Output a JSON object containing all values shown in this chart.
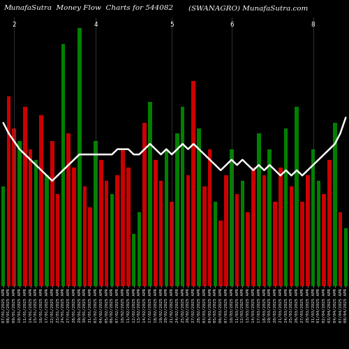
{
  "title_left": "MunafaSutra  Money Flow  Charts for 544082",
  "title_right": "(SWANAGRO) MunafaSutra.com",
  "background_color": "#000000",
  "bar_colors": [
    "green",
    "red",
    "red",
    "green",
    "red",
    "red",
    "green",
    "red",
    "green",
    "red",
    "red",
    "green",
    "red",
    "red",
    "green",
    "red",
    "red",
    "green",
    "red",
    "red",
    "green",
    "red",
    "red",
    "red",
    "green",
    "green",
    "red",
    "green",
    "red",
    "red",
    "green",
    "red",
    "green",
    "green",
    "red",
    "red",
    "green",
    "red",
    "red",
    "green",
    "red",
    "red",
    "green",
    "red",
    "green",
    "red",
    "red",
    "green",
    "red",
    "green",
    "red",
    "red",
    "green",
    "red",
    "green",
    "red",
    "red",
    "green",
    "green",
    "red",
    "red",
    "green",
    "red",
    "green"
  ],
  "bar_heights": [
    0.38,
    0.72,
    0.6,
    0.55,
    0.68,
    0.52,
    0.48,
    0.65,
    0.42,
    0.55,
    0.35,
    0.92,
    0.58,
    0.45,
    0.98,
    0.38,
    0.3,
    0.55,
    0.48,
    0.4,
    0.35,
    0.42,
    0.52,
    0.45,
    0.2,
    0.28,
    0.62,
    0.7,
    0.48,
    0.4,
    0.52,
    0.32,
    0.58,
    0.68,
    0.42,
    0.78,
    0.6,
    0.38,
    0.52,
    0.32,
    0.25,
    0.42,
    0.52,
    0.35,
    0.4,
    0.28,
    0.45,
    0.58,
    0.42,
    0.52,
    0.32,
    0.45,
    0.6,
    0.38,
    0.68,
    0.32,
    0.42,
    0.52,
    0.4,
    0.35,
    0.48,
    0.62,
    0.28,
    0.22
  ],
  "line_values": [
    0.62,
    0.58,
    0.55,
    0.52,
    0.5,
    0.48,
    0.46,
    0.44,
    0.42,
    0.4,
    0.42,
    0.44,
    0.46,
    0.48,
    0.5,
    0.5,
    0.5,
    0.5,
    0.5,
    0.5,
    0.5,
    0.52,
    0.52,
    0.52,
    0.5,
    0.5,
    0.52,
    0.54,
    0.52,
    0.5,
    0.52,
    0.5,
    0.52,
    0.54,
    0.52,
    0.54,
    0.52,
    0.5,
    0.48,
    0.46,
    0.44,
    0.46,
    0.48,
    0.46,
    0.48,
    0.46,
    0.44,
    0.46,
    0.44,
    0.46,
    0.44,
    0.42,
    0.44,
    0.42,
    0.44,
    0.42,
    0.44,
    0.46,
    0.48,
    0.5,
    0.52,
    0.54,
    0.58,
    0.64
  ],
  "dates": [
    "07/01/2025 APR",
    "08/01/2025 APR",
    "09/01/2025 APR",
    "10/01/2025 APR",
    "11/01/2025 APR",
    "14/01/2025 APR",
    "15/01/2025 APR",
    "16/01/2025 APR",
    "17/01/2025 APR",
    "22/01/2025 APR",
    "23/01/2025 APR",
    "24/01/2025 APR",
    "27/01/2025 APR",
    "28/01/2025 APR",
    "29/01/2025 APR",
    "30/01/2025 APR",
    "31/01/2025 APR",
    "03/02/2025 APR",
    "04/02/2025 APR",
    "05/02/2025 APR",
    "06/02/2025 APR",
    "07/02/2025 APR",
    "10/02/2025 APR",
    "11/02/2025 APR",
    "12/02/2025 APR",
    "13/02/2025 APR",
    "14/02/2025 APR",
    "17/02/2025 APR",
    "18/02/2025 APR",
    "19/02/2025 APR",
    "20/02/2025 APR",
    "21/02/2025 APR",
    "24/02/2025 APR",
    "25/02/2025 APR",
    "26/02/2025 APR",
    "27/02/2025 APR",
    "28/02/2025 APR",
    "03/03/2025 APR",
    "04/03/2025 APR",
    "05/03/2025 APR",
    "06/03/2025 APR",
    "07/03/2025 APR",
    "10/03/2025 APR",
    "11/03/2025 APR",
    "12/03/2025 APR",
    "13/03/2025 APR",
    "14/03/2025 APR",
    "17/03/2025 APR",
    "18/03/2025 APR",
    "19/03/2025 APR",
    "20/03/2025 APR",
    "21/03/2025 APR",
    "24/03/2025 APR",
    "25/03/2025 APR",
    "26/03/2025 APR",
    "27/03/2025 APR",
    "28/03/2025 APR",
    "31/03/2025 APR",
    "01/04/2025 APR",
    "02/04/2025 APR",
    "03/04/2025 APR",
    "04/04/2025 APR",
    "07/04/2025 APR",
    "08/04/2025 APR"
  ],
  "month_markers": [
    2,
    17,
    31,
    42,
    57
  ],
  "month_labels": [
    "2",
    "4",
    "5",
    "6",
    "8"
  ],
  "line_color": "#ffffff",
  "line_width": 1.8,
  "ylim": [
    0,
    1.02
  ],
  "title_fontsize": 7.5,
  "tick_fontsize": 4.2,
  "green_color": "#008000",
  "red_color": "#cc0000"
}
